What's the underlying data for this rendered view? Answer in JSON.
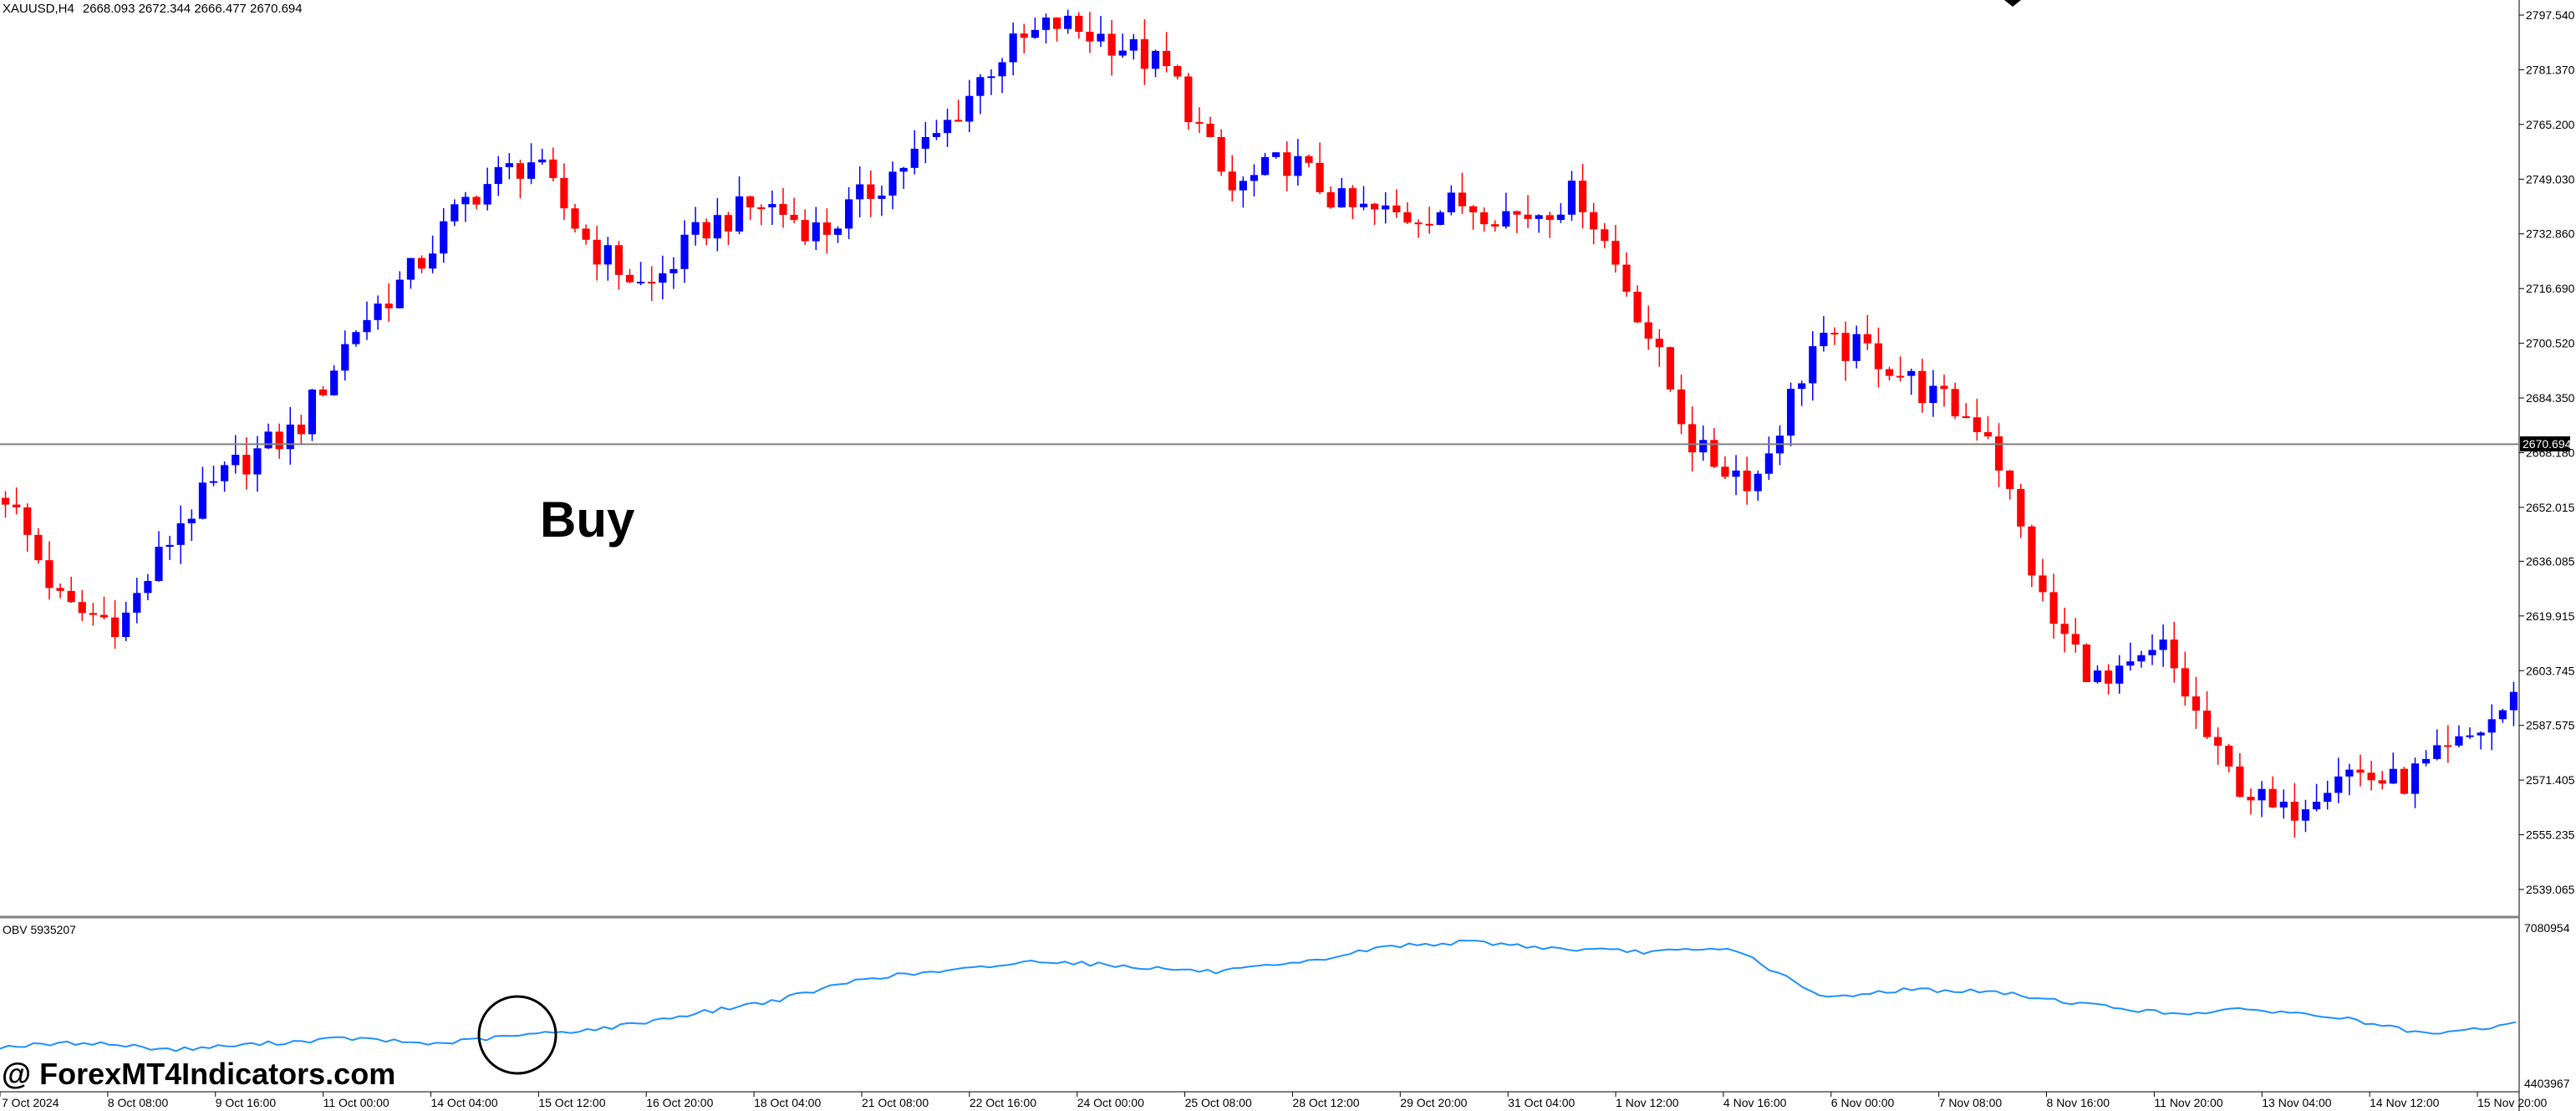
{
  "header": {
    "symbol_timeframe": "XAUUSD,H4",
    "ohlc": "2668.093 2672.344 2666.477 2670.694"
  },
  "indicator": {
    "label": "OBV 5935207",
    "scale_top": "7080954",
    "scale_bottom": "4403967"
  },
  "current_price_label": "2670.694",
  "annotation": "Buy",
  "watermark": "@ ForexMT4Indicators.com",
  "colors": {
    "bull": "#0000ff",
    "bear": "#ff0000",
    "obv_line": "#1e90ff",
    "background": "#ffffff",
    "price_line": "#808080"
  },
  "chart_data": {
    "type": "candlestick",
    "y_ticks": [
      "2797.540",
      "2781.370",
      "2765.200",
      "2749.030",
      "2732.860",
      "2716.690",
      "2700.520",
      "2684.350",
      "2668.180",
      "2652.015",
      "2636.085",
      "2619.915",
      "2603.745",
      "2587.575",
      "2571.405",
      "2555.235",
      "2539.065"
    ],
    "ylim": [
      2535,
      2803
    ],
    "x_labels": [
      "7 Oct 2024",
      "8 Oct 08:00",
      "9 Oct 16:00",
      "11 Oct 00:00",
      "14 Oct 04:00",
      "15 Oct 12:00",
      "16 Oct 20:00",
      "18 Oct 04:00",
      "21 Oct 08:00",
      "22 Oct 16:00",
      "24 Oct 00:00",
      "25 Oct 08:00",
      "28 Oct 12:00",
      "29 Oct 20:00",
      "31 Oct 04:00",
      "1 Nov 12:00",
      "4 Nov 16:00",
      "6 Nov 00:00",
      "7 Nov 08:00",
      "8 Nov 16:00",
      "11 Nov 20:00",
      "13 Nov 04:00",
      "14 Nov 12:00",
      "15 Nov 20:00"
    ],
    "key_levels": [
      2656,
      2622,
      2618,
      2648,
      2665,
      2675,
      2705,
      2722,
      2745,
      2755,
      2730,
      2716,
      2735,
      2742,
      2733,
      2748,
      2762,
      2785,
      2795,
      2790,
      2780,
      2745,
      2755,
      2740,
      2738,
      2742,
      2738,
      2745,
      2710,
      2668,
      2660,
      2700,
      2698,
      2685,
      2675,
      2620,
      2598,
      2610,
      2575,
      2560,
      2575,
      2570,
      2580,
      2595
    ],
    "obv": [
      0.22,
      0.25,
      0.2,
      0.24,
      0.28,
      0.24,
      0.3,
      0.35,
      0.45,
      0.55,
      0.7,
      0.75,
      0.82,
      0.78,
      0.74,
      0.8,
      0.92,
      0.95,
      0.9,
      0.88,
      0.9,
      0.56,
      0.62,
      0.6,
      0.52,
      0.45,
      0.48,
      0.42,
      0.3,
      0.38
    ],
    "ohlc": "2668.093 2672.344 2666.477 2670.694"
  }
}
